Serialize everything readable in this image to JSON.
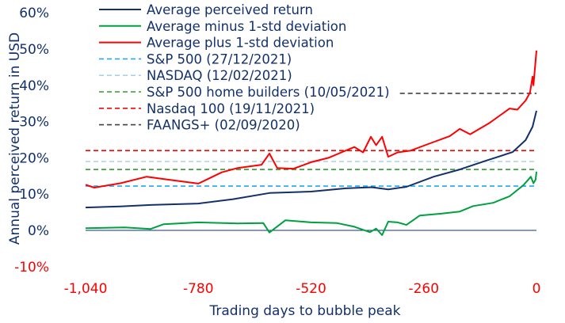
{
  "chart_data": {
    "type": "line",
    "title": "",
    "xlabel": "Trading days to bubble peak",
    "ylabel": "Annual perceived return in USD",
    "xlim": [
      -1040,
      0
    ],
    "ylim": [
      -10,
      60
    ],
    "x_ticks": [
      "-1,040",
      "-780",
      "-520",
      "-260",
      "0"
    ],
    "x_tick_values": [
      -1040,
      -780,
      -520,
      -260,
      0
    ],
    "y_ticks": [
      "-10%",
      "0%",
      "10%",
      "20%",
      "30%",
      "40%",
      "50%",
      "60%"
    ],
    "y_tick_values": [
      -10,
      0,
      10,
      20,
      30,
      40,
      50,
      60
    ],
    "grid": false,
    "legend_position": "top-left",
    "colors": {
      "text": "#12306b",
      "tick_red": "#ff0000"
    },
    "series": [
      {
        "name": "Average perceived return",
        "color": "#12306b",
        "style": "solid",
        "x": [
          -1040,
          -960,
          -890,
          -780,
          -700,
          -616,
          -520,
          -440,
          -380,
          -342,
          -300,
          -237,
          -177,
          -117,
          -55,
          -25,
          -9,
          0
        ],
        "y": [
          6.3,
          6.6,
          7.0,
          7.4,
          8.6,
          10.3,
          10.7,
          11.6,
          11.9,
          11.3,
          12.0,
          14.8,
          16.8,
          19.2,
          21.6,
          24.9,
          28.6,
          33
        ]
      },
      {
        "name": "Average minus 1-std deviation",
        "color": "#00a040",
        "style": "solid",
        "x": [
          -1040,
          -950,
          -890,
          -860,
          -780,
          -689,
          -630,
          -616,
          -579,
          -520,
          -460,
          -420,
          -384,
          -370,
          -356,
          -342,
          -320,
          -300,
          -269,
          -220,
          -177,
          -146,
          -100,
          -62,
          -30,
          -13,
          -7,
          -2,
          0
        ],
        "y": [
          0.6,
          0.8,
          0.4,
          1.7,
          2.2,
          1.9,
          2.0,
          -0.6,
          2.8,
          2.2,
          2.0,
          1.0,
          -0.5,
          0.5,
          -1.3,
          2.4,
          2.2,
          1.5,
          4.1,
          4.6,
          5.2,
          6.7,
          7.6,
          9.4,
          12.5,
          14.8,
          13.0,
          14.0,
          16.2
        ]
      },
      {
        "name": "Average plus 1-std deviation",
        "color": "#ff0000",
        "style": "solid",
        "x": [
          -1040,
          -1020,
          -960,
          -899,
          -850,
          -780,
          -726,
          -689,
          -634,
          -616,
          -598,
          -560,
          -520,
          -480,
          -450,
          -420,
          -400,
          -382,
          -370,
          -356,
          -342,
          -320,
          -290,
          -250,
          -200,
          -177,
          -153,
          -110,
          -62,
          -44,
          -25,
          -15,
          -9,
          -7,
          0
        ],
        "y": [
          12.6,
          11.8,
          13.0,
          14.8,
          14.0,
          12.9,
          16.0,
          17.2,
          18.1,
          21.2,
          17.2,
          17.0,
          18.8,
          20.0,
          21.5,
          23.0,
          21.5,
          25.8,
          23.5,
          25.8,
          20.3,
          21.5,
          22.0,
          23.8,
          26.0,
          28.0,
          26.5,
          29.5,
          33.6,
          33.3,
          35.8,
          38.0,
          42.4,
          40.0,
          49.6
        ]
      },
      {
        "name": "S&P 500 (27/12/2021)",
        "color": "#1fa9f0",
        "style": "dashed",
        "x": [
          -1040,
          0
        ],
        "y": [
          12.2,
          12.2
        ]
      },
      {
        "name": "NASDAQ (12/02/2021)",
        "color": "#a9d2e6",
        "style": "dashed",
        "x": [
          -1040,
          0
        ],
        "y": [
          19.0,
          19.0
        ]
      },
      {
        "name": "S&P 500 home builders (10/05/2021)",
        "color": "#2e9a2e",
        "style": "dashed",
        "x": [
          -1040,
          0
        ],
        "y": [
          16.8,
          16.8
        ]
      },
      {
        "name": "Nasdaq 100 (19/11/2021)",
        "color": "#ff0000",
        "style": "dashed",
        "x": [
          -1040,
          0
        ],
        "y": [
          22.0,
          22.0
        ]
      },
      {
        "name": "FAANGS+ (02/09/2020)",
        "color": "#404040",
        "style": "dashed",
        "x": [
          -315,
          0
        ],
        "y": [
          37.8,
          37.8
        ]
      }
    ]
  }
}
